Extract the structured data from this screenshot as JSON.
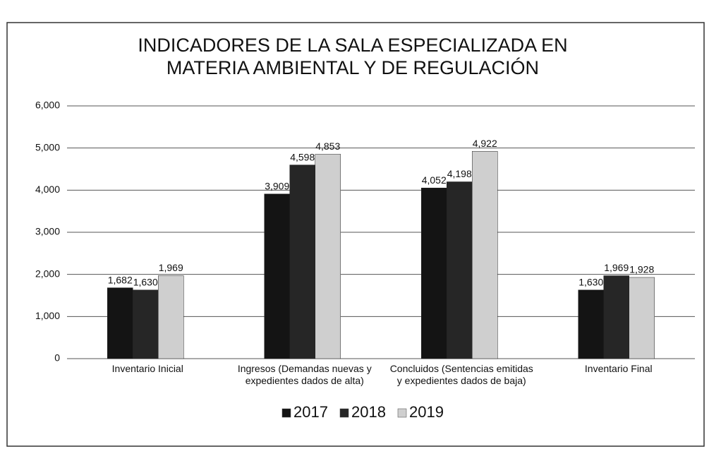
{
  "chart_data": {
    "type": "bar",
    "title": "INDICADORES DE LA SALA ESPECIALIZADA EN MATERIA AMBIENTAL Y DE REGULACIÓN",
    "categories": [
      "Inventario Inicial",
      "Ingresos (Demandas nuevas y expedientes dados de alta)",
      "Concluidos (Sentencias emitidas y expedientes dados de baja)",
      "Inventario Final"
    ],
    "series": [
      {
        "name": "2017",
        "color": "#141414",
        "values": [
          1682,
          3909,
          4052,
          1630
        ],
        "value_labels": [
          "1,682",
          "3,909",
          "4,052",
          "1,630"
        ]
      },
      {
        "name": "2018",
        "color": "#262626",
        "values": [
          1630,
          4598,
          4198,
          1969
        ],
        "value_labels": [
          "1,630",
          "4,598",
          "4,198",
          "1,969"
        ]
      },
      {
        "name": "2019",
        "color": "#cfcfcf",
        "values": [
          1969,
          4853,
          4922,
          1928
        ],
        "value_labels": [
          "1,969",
          "4,853",
          "4,922",
          "1,928"
        ]
      }
    ],
    "ylim": [
      0,
      6000
    ],
    "yticks": [
      0,
      {
        "value": 1000,
        "label": "1,000"
      },
      {
        "value": 2000,
        "label": "2,000"
      },
      {
        "value": 3000,
        "label": "3,000"
      },
      {
        "value": 4000,
        "label": "4,000"
      },
      {
        "value": 5000,
        "label": "5,000"
      },
      {
        "value": 6000,
        "label": "6,000"
      }
    ],
    "grid": true,
    "legend": "bottom"
  }
}
